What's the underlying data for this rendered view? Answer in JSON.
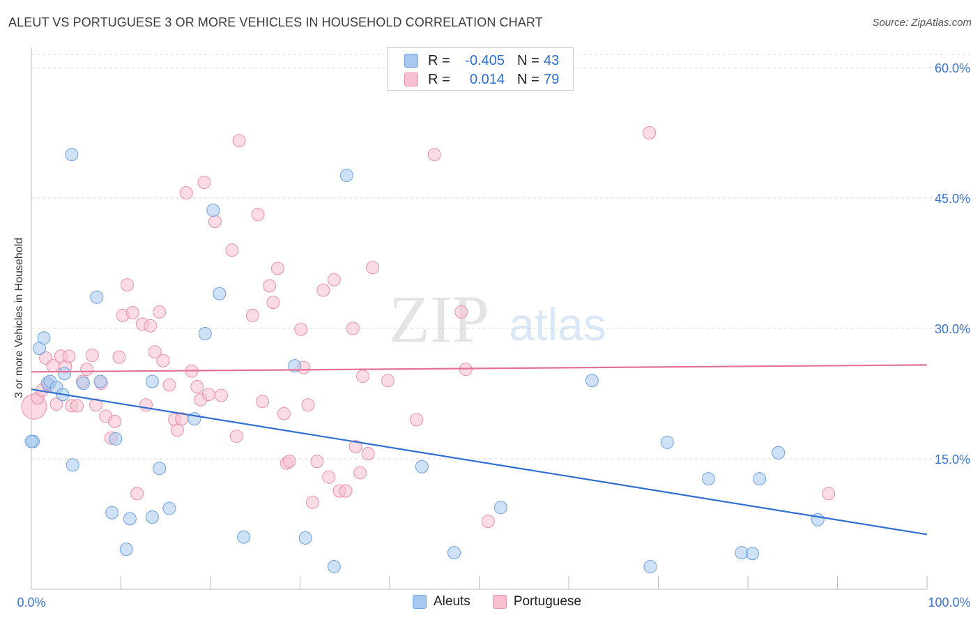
{
  "header": {
    "title": "ALEUT VS PORTUGUESE 3 OR MORE VEHICLES IN HOUSEHOLD CORRELATION CHART",
    "source": "Source: ZipAtlas.com"
  },
  "watermark": {
    "part1": "ZIP",
    "part2": "atlas"
  },
  "stats_legend": {
    "rows": [
      {
        "r_label": "R =",
        "r_value": "-0.405",
        "n_label": "N =",
        "n_value": "43",
        "color": "#a8c8f0",
        "border": "#6a9fe0"
      },
      {
        "r_label": "R =",
        "r_value": "0.014",
        "n_label": "N =",
        "n_value": "79",
        "color": "#f8c0d0",
        "border": "#e890a8"
      }
    ]
  },
  "bottom_legend": {
    "items": [
      {
        "label": "Aleuts",
        "color": "#a8c8f0",
        "border": "#6a9fe0"
      },
      {
        "label": "Portuguese",
        "color": "#f8c0d0",
        "border": "#e890a8"
      }
    ]
  },
  "chart_data": {
    "type": "scatter",
    "title": "ALEUT VS PORTUGUESE 3 OR MORE VEHICLES IN HOUSEHOLD CORRELATION CHART",
    "xlabel": "",
    "ylabel": "3 or more Vehicles in Household",
    "xlim": [
      0,
      100
    ],
    "ylim": [
      0,
      60
    ],
    "x_tick_labels": [
      "0.0%",
      "100.0%"
    ],
    "y_ticks": [
      15,
      30,
      45,
      60
    ],
    "y_tick_labels": [
      "15.0%",
      "30.0%",
      "45.0%",
      "60.0%"
    ],
    "grid": true,
    "legend_position": "top-center",
    "series": [
      {
        "name": "Aleuts",
        "color": "#6a9fe0",
        "fill": "#a8c8f0",
        "line_color": "#2f6fd0",
        "trend": {
          "x": [
            0,
            100
          ],
          "y": [
            23.0,
            6.3
          ]
        },
        "points": [
          [
            0.2,
            17.0
          ],
          [
            0.9,
            27.7
          ],
          [
            1.4,
            28.9
          ],
          [
            1.8,
            23.7
          ],
          [
            2.1,
            23.9
          ],
          [
            2.8,
            23.2
          ],
          [
            3.5,
            22.4
          ],
          [
            3.7,
            24.8
          ],
          [
            4.5,
            50.0
          ],
          [
            4.6,
            14.3
          ],
          [
            5.8,
            23.7
          ],
          [
            7.3,
            33.6
          ],
          [
            7.7,
            23.9
          ],
          [
            9.0,
            8.8
          ],
          [
            9.4,
            17.3
          ],
          [
            10.6,
            4.6
          ],
          [
            11.0,
            8.1
          ],
          [
            13.5,
            8.3
          ],
          [
            13.5,
            23.9
          ],
          [
            14.3,
            13.9
          ],
          [
            15.4,
            9.3
          ],
          [
            18.2,
            19.6
          ],
          [
            19.4,
            29.4
          ],
          [
            20.3,
            43.6
          ],
          [
            21.0,
            34.0
          ],
          [
            23.7,
            6.0
          ],
          [
            29.4,
            25.7
          ],
          [
            30.6,
            5.9
          ],
          [
            33.8,
            2.6
          ],
          [
            35.2,
            47.6
          ],
          [
            43.6,
            14.1
          ],
          [
            47.2,
            4.2
          ],
          [
            52.4,
            9.4
          ],
          [
            62.6,
            24.0
          ],
          [
            69.1,
            2.6
          ],
          [
            71.0,
            16.9
          ],
          [
            75.6,
            12.7
          ],
          [
            79.3,
            4.2
          ],
          [
            80.5,
            4.1
          ],
          [
            81.3,
            12.7
          ],
          [
            83.4,
            15.7
          ],
          [
            87.8,
            8.0
          ],
          [
            0.0,
            17.0
          ]
        ]
      },
      {
        "name": "Portuguese",
        "color": "#e890a8",
        "fill": "#f8c0d0",
        "line_color": "#e4709a",
        "trend": {
          "x": [
            0,
            100
          ],
          "y": [
            25.0,
            25.8
          ]
        },
        "points": [
          [
            0.3,
            21.0
          ],
          [
            0.7,
            22.0
          ],
          [
            1.2,
            22.9
          ],
          [
            1.6,
            26.6
          ],
          [
            1.9,
            23.5
          ],
          [
            2.4,
            25.7
          ],
          [
            2.8,
            21.3
          ],
          [
            3.3,
            26.8
          ],
          [
            3.8,
            25.6
          ],
          [
            4.2,
            26.8
          ],
          [
            4.5,
            21.1
          ],
          [
            5.1,
            21.1
          ],
          [
            5.7,
            23.9
          ],
          [
            6.2,
            25.3
          ],
          [
            6.8,
            26.9
          ],
          [
            7.2,
            21.2
          ],
          [
            7.8,
            23.7
          ],
          [
            8.3,
            19.9
          ],
          [
            8.9,
            17.4
          ],
          [
            9.3,
            19.3
          ],
          [
            9.8,
            26.7
          ],
          [
            10.2,
            31.5
          ],
          [
            10.7,
            35.0
          ],
          [
            11.3,
            31.8
          ],
          [
            11.8,
            11.0
          ],
          [
            12.4,
            30.5
          ],
          [
            12.8,
            21.2
          ],
          [
            13.3,
            30.3
          ],
          [
            13.8,
            27.3
          ],
          [
            14.3,
            31.9
          ],
          [
            14.7,
            26.3
          ],
          [
            15.4,
            23.5
          ],
          [
            16.0,
            19.5
          ],
          [
            16.3,
            18.3
          ],
          [
            16.8,
            19.6
          ],
          [
            17.3,
            45.6
          ],
          [
            17.9,
            25.1
          ],
          [
            18.5,
            23.3
          ],
          [
            18.9,
            21.8
          ],
          [
            19.3,
            46.8
          ],
          [
            19.8,
            22.4
          ],
          [
            20.5,
            42.3
          ],
          [
            21.2,
            22.3
          ],
          [
            22.4,
            39.0
          ],
          [
            22.9,
            17.6
          ],
          [
            23.2,
            51.6
          ],
          [
            24.7,
            31.5
          ],
          [
            25.3,
            43.1
          ],
          [
            25.8,
            21.6
          ],
          [
            26.6,
            34.9
          ],
          [
            27.0,
            33.0
          ],
          [
            27.5,
            36.9
          ],
          [
            28.2,
            20.2
          ],
          [
            28.5,
            14.5
          ],
          [
            28.8,
            14.7
          ],
          [
            30.1,
            29.9
          ],
          [
            30.4,
            25.5
          ],
          [
            30.9,
            21.2
          ],
          [
            31.4,
            10.0
          ],
          [
            31.9,
            14.7
          ],
          [
            32.6,
            34.4
          ],
          [
            33.2,
            12.9
          ],
          [
            33.8,
            35.6
          ],
          [
            34.4,
            11.3
          ],
          [
            35.1,
            11.3
          ],
          [
            35.9,
            30.0
          ],
          [
            36.2,
            16.4
          ],
          [
            36.7,
            13.4
          ],
          [
            37.0,
            24.5
          ],
          [
            37.6,
            15.6
          ],
          [
            38.1,
            37.0
          ],
          [
            39.8,
            24.0
          ],
          [
            43.0,
            19.5
          ],
          [
            45.0,
            50.0
          ],
          [
            48.0,
            31.9
          ],
          [
            48.5,
            25.3
          ],
          [
            51.0,
            7.8
          ],
          [
            69.0,
            52.5
          ],
          [
            89.0,
            11.0
          ]
        ]
      }
    ]
  }
}
